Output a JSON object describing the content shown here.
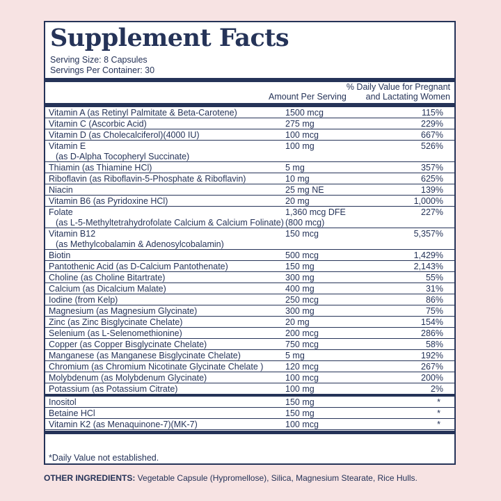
{
  "title": "Supplement Facts",
  "serving_size": "Serving Size: 8 Capsules",
  "servings_per_container": "Servings Per Container: 30",
  "header": {
    "amount": "Amount Per Serving",
    "dv_line1": "% Daily Value for Pregnant",
    "dv_line2": "and Lactating Women"
  },
  "rows": [
    {
      "name": "Vitamin A (as Retinyl Palmitate & Beta-Carotene)",
      "name2": "",
      "amount": "1500 mcg",
      "amount2": "",
      "dv": "115%"
    },
    {
      "name": "Vitamin C (Ascorbic Acid)",
      "name2": "",
      "amount": "275 mg",
      "amount2": "",
      "dv": "229%"
    },
    {
      "name": "Vitamin D (as Cholecalciferol)(4000 IU)",
      "name2": "",
      "amount": "100 mcg",
      "amount2": "",
      "dv": "667%"
    },
    {
      "name": "Vitamin E",
      "name2": "(as D-Alpha Tocopheryl Succinate)",
      "amount": "100 mg",
      "amount2": "",
      "dv": "526%"
    },
    {
      "name": "Thiamin (as Thiamine HCl)",
      "name2": "",
      "amount": "5 mg",
      "amount2": "",
      "dv": "357%"
    },
    {
      "name": "Riboflavin (as Riboflavin-5-Phosphate & Riboflavin)",
      "name2": "",
      "amount": "10 mg",
      "amount2": "",
      "dv": "625%"
    },
    {
      "name": "Niacin",
      "name2": "",
      "amount": "25 mg NE",
      "amount2": "",
      "dv": "139%"
    },
    {
      "name": "Vitamin B6 (as Pyridoxine HCl)",
      "name2": "",
      "amount": "20 mg",
      "amount2": "",
      "dv": "1,000%"
    },
    {
      "name": "Folate",
      "name2": "(as L-5-Methyltetrahydrofolate Calcium & Calcium Folinate)",
      "amount": "1,360 mcg DFE",
      "amount2": "(800 mcg)",
      "dv": "227%"
    },
    {
      "name": "Vitamin B12",
      "name2": "(as Methylcobalamin & Adenosylcobalamin)",
      "amount": "150 mcg",
      "amount2": "",
      "dv": "5,357%"
    },
    {
      "name": "Biotin",
      "name2": "",
      "amount": "500 mcg",
      "amount2": "",
      "dv": "1,429%"
    },
    {
      "name": "Pantothenic Acid (as D-Calcium Pantothenate)",
      "name2": "",
      "amount": "150 mg",
      "amount2": "",
      "dv": "2,143%"
    },
    {
      "name": "Choline (as Choline Bitartrate)",
      "name2": "",
      "amount": "300 mg",
      "amount2": "",
      "dv": "55%"
    },
    {
      "name": "Calcium (as Dicalcium Malate)",
      "name2": "",
      "amount": "400 mg",
      "amount2": "",
      "dv": "31%"
    },
    {
      "name": "Iodine (from Kelp)",
      "name2": "",
      "amount": "250 mcg",
      "amount2": "",
      "dv": "86%"
    },
    {
      "name": "Magnesium (as Magnesium Glycinate)",
      "name2": "",
      "amount": "300 mg",
      "amount2": "",
      "dv": "75%"
    },
    {
      "name": "Zinc (as Zinc Bisglycinate Chelate)",
      "name2": "",
      "amount": "20 mg",
      "amount2": "",
      "dv": "154%"
    },
    {
      "name": "Selenium (as L-Selenomethionine)",
      "name2": "",
      "amount": "200 mcg",
      "amount2": "",
      "dv": "286%"
    },
    {
      "name": "Copper (as Copper Bisglycinate Chelate)",
      "name2": "",
      "amount": "750 mcg",
      "amount2": "",
      "dv": "58%"
    },
    {
      "name": "Manganese (as Manganese Bisglycinate Chelate)",
      "name2": "",
      "amount": "5 mg",
      "amount2": "",
      "dv": "192%"
    },
    {
      "name": "Chromium (as Chromium Nicotinate Glycinate Chelate )",
      "name2": "",
      "amount": "120 mcg",
      "amount2": "",
      "dv": "267%"
    },
    {
      "name": "Molybdenum (as Molybdenum Glycinate)",
      "name2": "",
      "amount": "100 mcg",
      "amount2": "",
      "dv": "200%"
    },
    {
      "name": "Potassium (as Potassium Citrate)",
      "name2": "",
      "amount": "100 mg",
      "amount2": "",
      "dv": "2%"
    },
    {
      "name": "Inositol",
      "name2": "",
      "amount": "150 mg",
      "amount2": "",
      "dv": "*"
    },
    {
      "name": "Betaine HCl",
      "name2": "",
      "amount": "150 mg",
      "amount2": "",
      "dv": "*"
    },
    {
      "name": "Vitamin K2 (as Menaquinone-7)(MK-7)",
      "name2": "",
      "amount": "100 mcg",
      "amount2": "",
      "dv": "*"
    }
  ],
  "footnote": "*Daily Value not established.",
  "other_ingredients": {
    "label": "OTHER INGREDIENTS:",
    "text": " Vegetable Capsule (Hypromellose), Silica, Magnesium Stearate, Rice Hulls."
  }
}
